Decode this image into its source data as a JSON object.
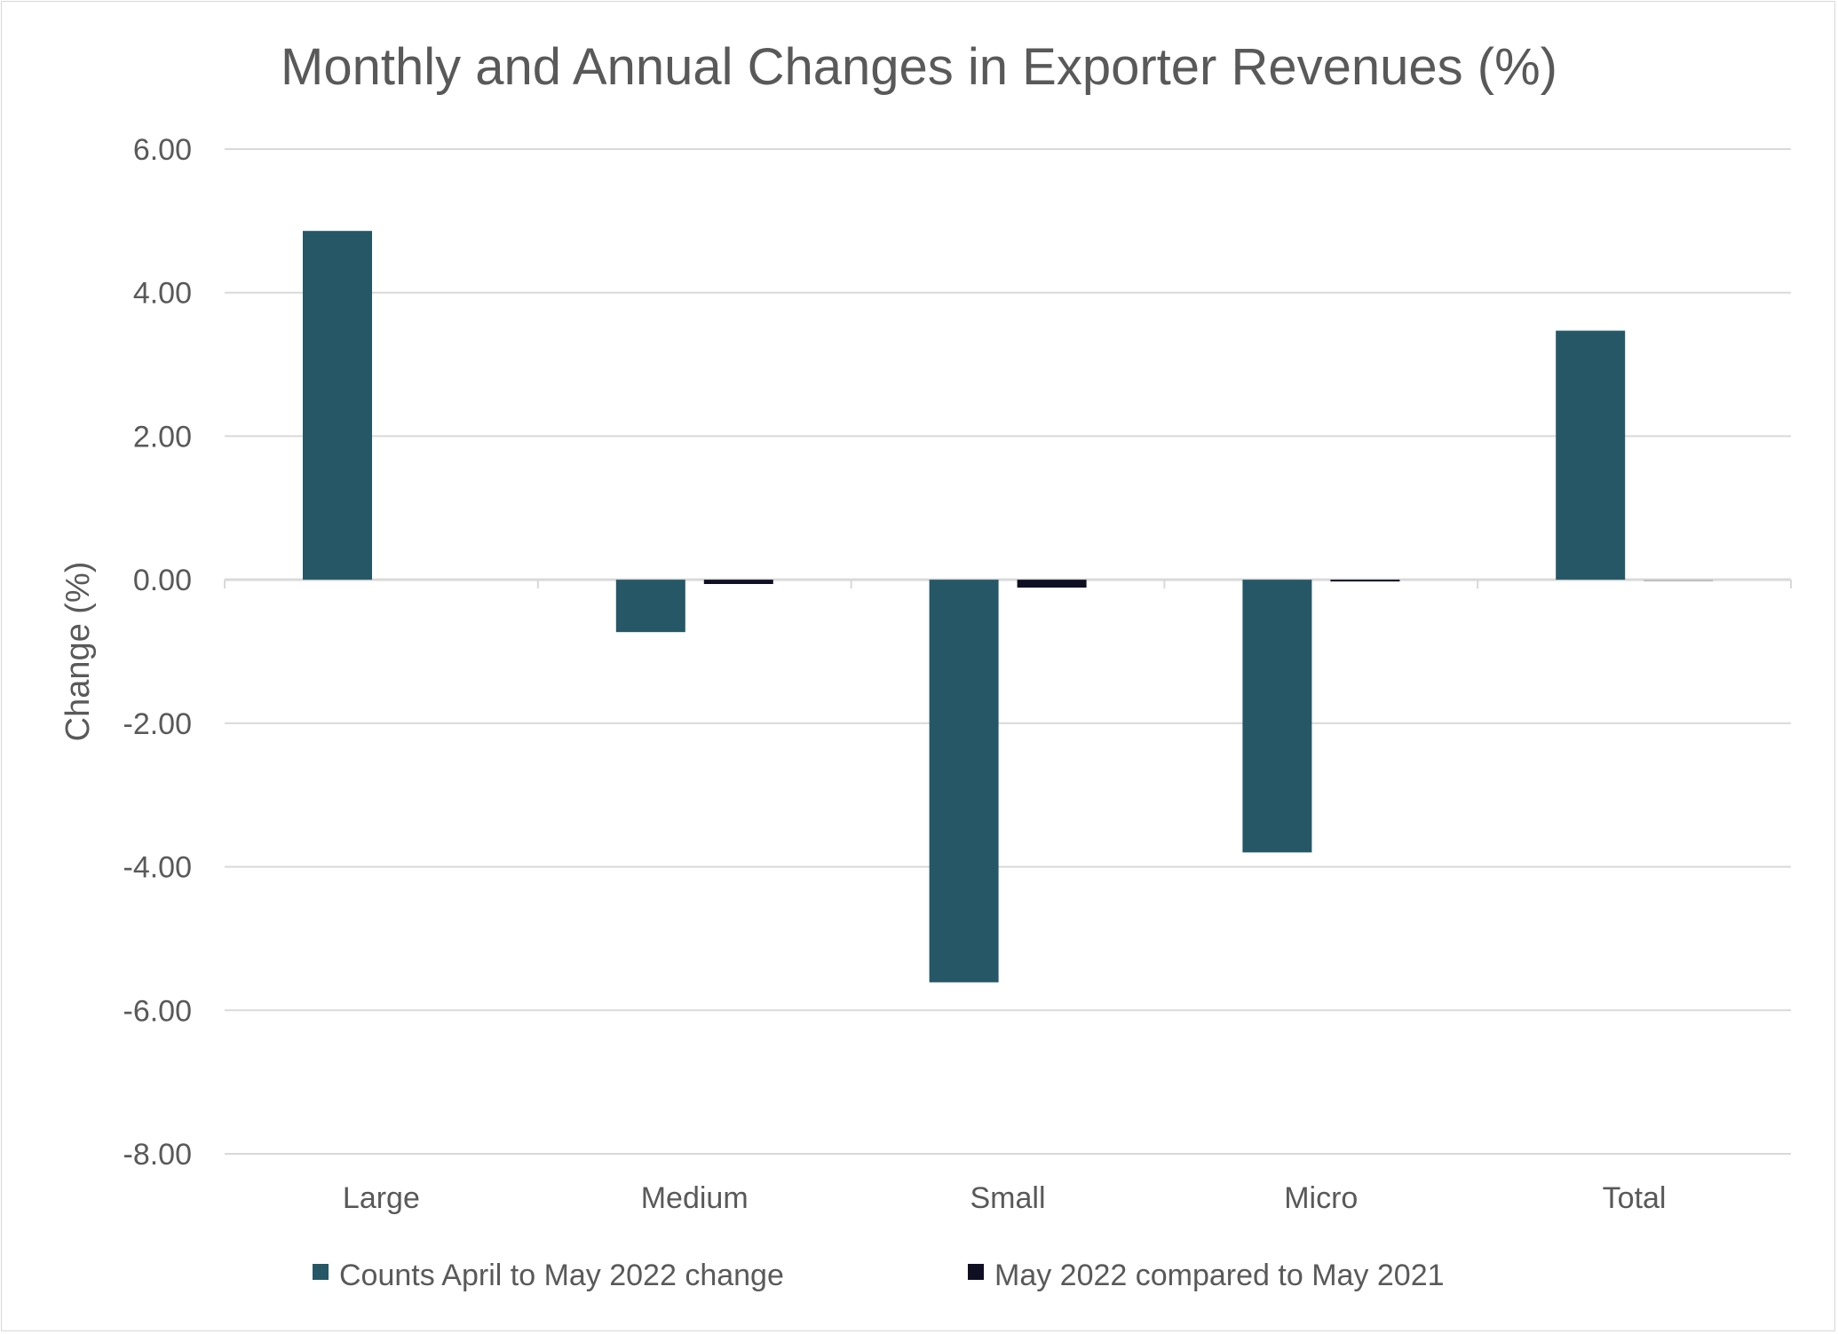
{
  "chart_data": {
    "type": "bar",
    "title": "Monthly and Annual Changes in Exporter Revenues (%)",
    "xlabel": "",
    "ylabel": "Change (%)",
    "ylim": [
      -8,
      6
    ],
    "yticks": [
      6,
      4,
      2,
      0,
      -2,
      -4,
      -6,
      -8
    ],
    "ytick_labels": [
      "6.00",
      "4.00",
      "2.00",
      "0.00",
      "-2.00",
      "-4.00",
      "-6.00",
      "-8.00"
    ],
    "grid": true,
    "legend_position": "bottom",
    "categories": [
      "Large",
      "Medium",
      "Small",
      "Micro",
      "Total"
    ],
    "series": [
      {
        "name": "Counts April to May 2022 change",
        "color": "#265766",
        "values": [
          4.86,
          -0.73,
          -5.61,
          -3.8,
          3.47
        ]
      },
      {
        "name": "May 2022 compared to May 2021",
        "color": "#0f0f24",
        "values": [
          0.0,
          -0.06,
          -0.11,
          -0.02,
          -0.01
        ]
      }
    ],
    "colors": {
      "text": "#595959",
      "grid": "#d9d9d9",
      "total_series2": "#bfbfbf"
    }
  }
}
